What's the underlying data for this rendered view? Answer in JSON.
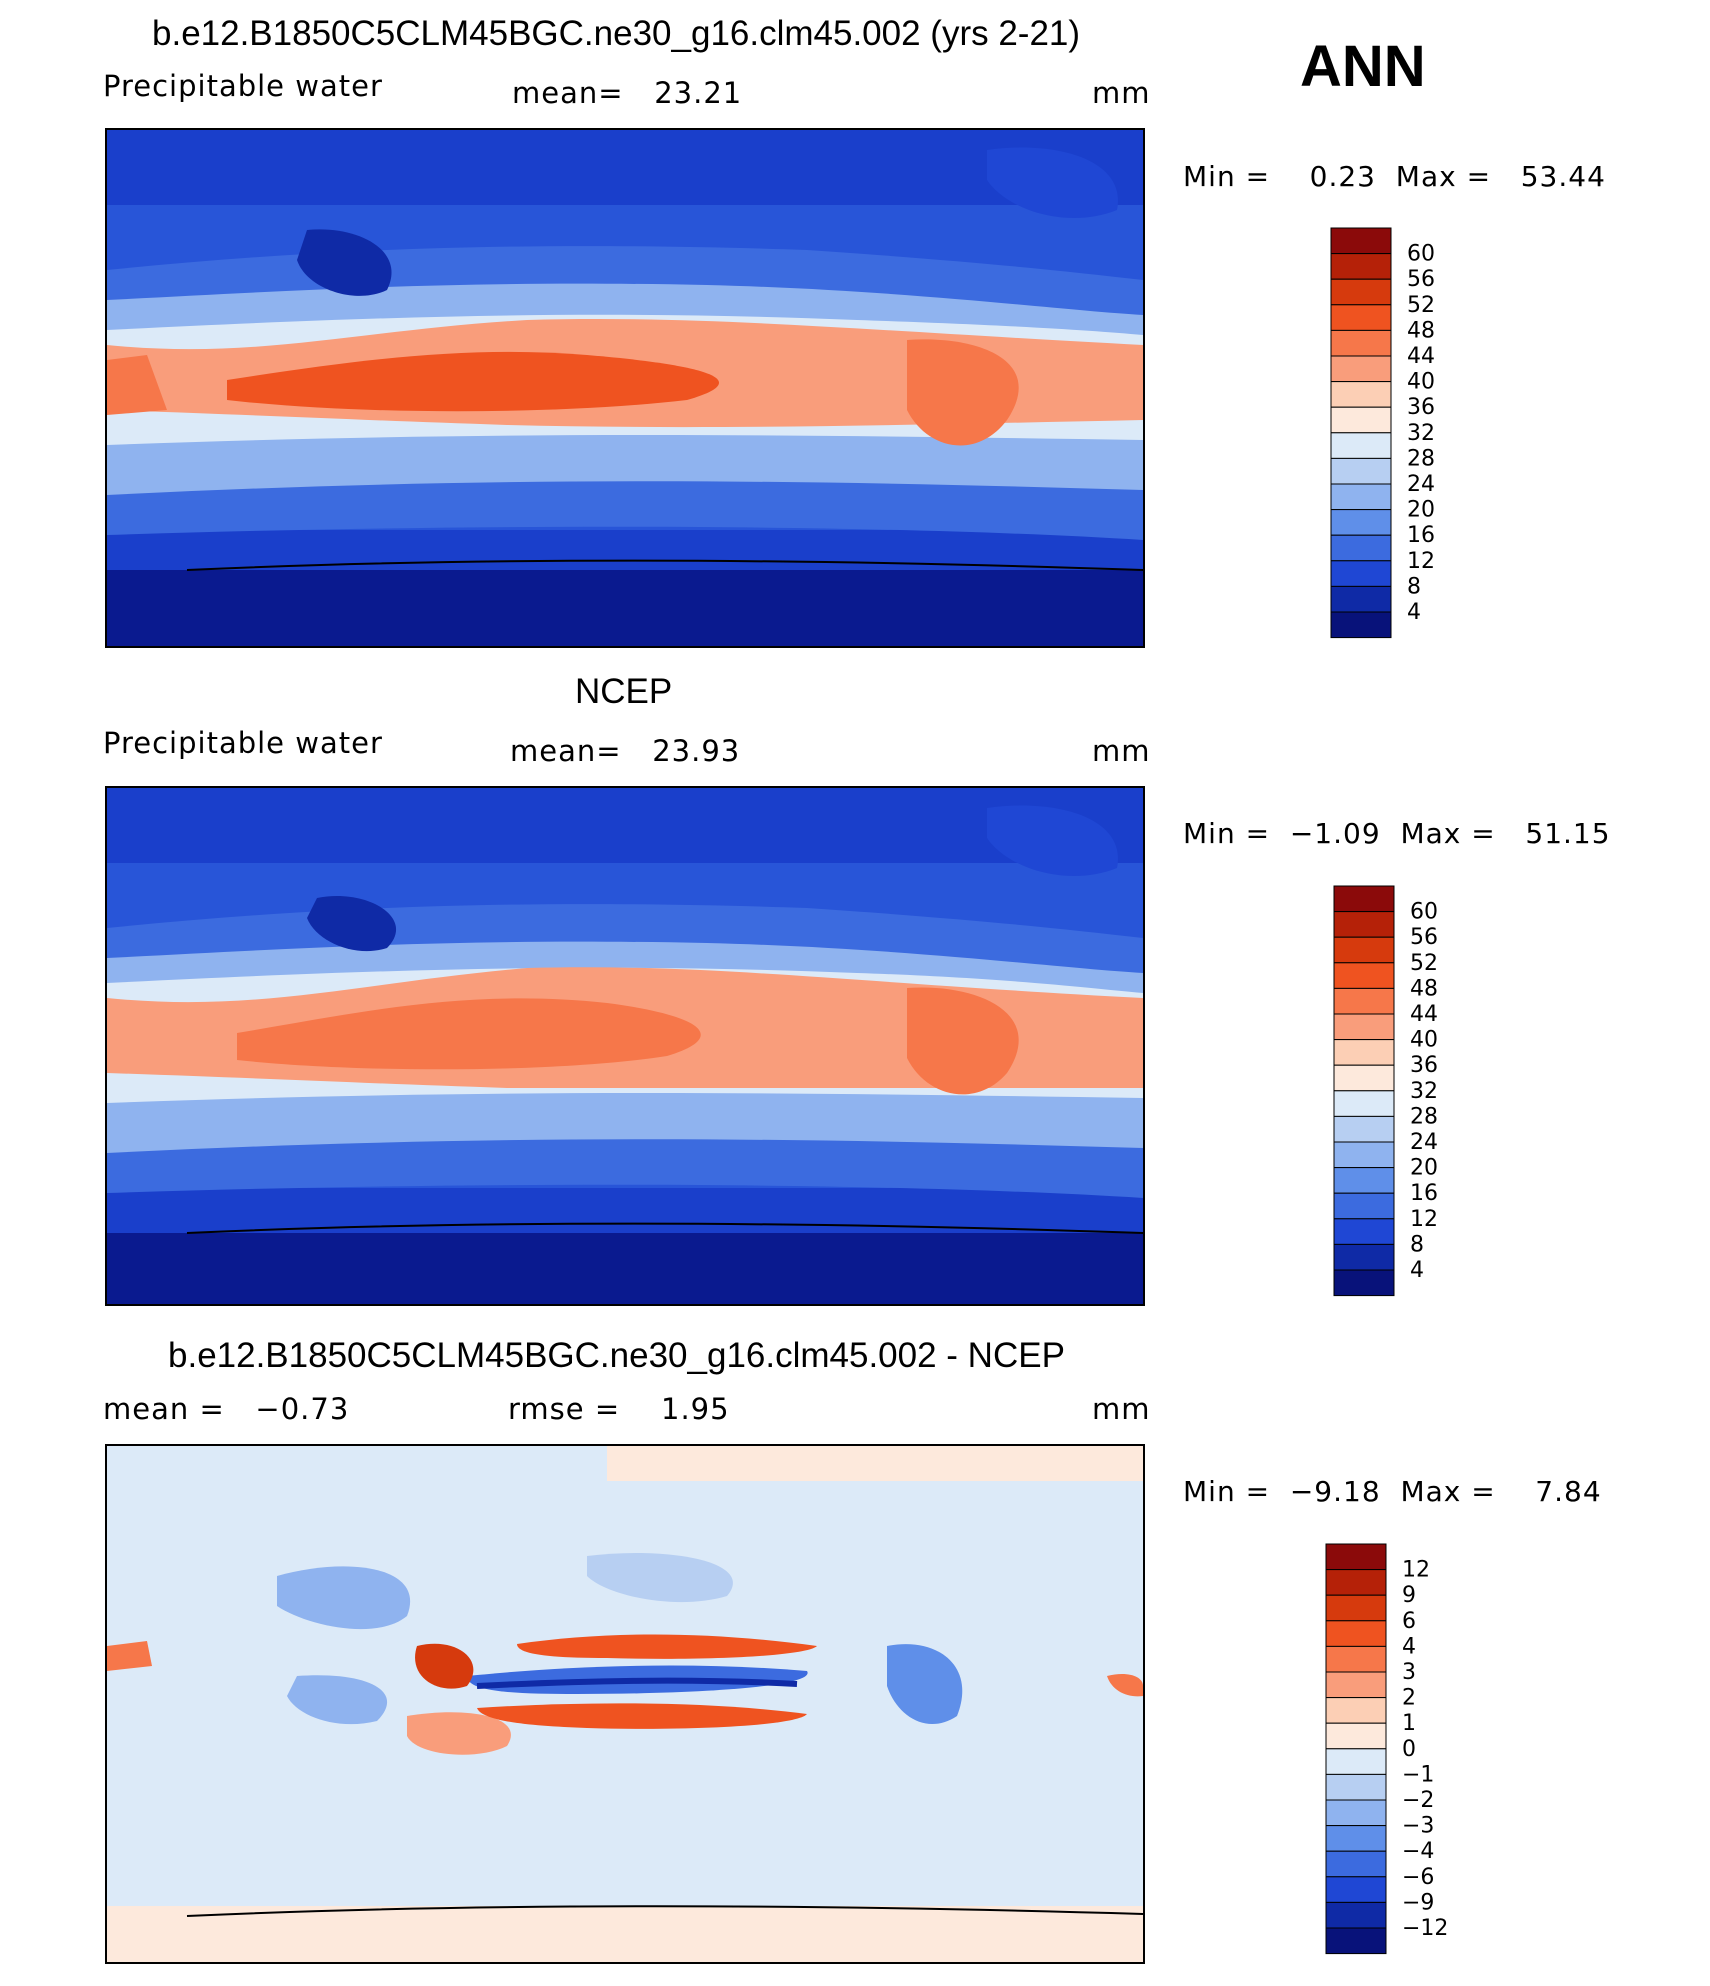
{
  "season": "ANN",
  "panels": [
    {
      "id": "model",
      "title": "b.e12.B1850C5CLM45BGC.ne30_g16.clm45.002 (yrs 2-21)",
      "left_label": "Precipitable water",
      "mid_label": "mean=   23.21",
      "units": "mm",
      "min_max": "Min =    0.23  Max =   53.44",
      "colorbar_labels": [
        "60",
        "56",
        "52",
        "48",
        "44",
        "40",
        "36",
        "32",
        "28",
        "24",
        "20",
        "16",
        "12",
        "8",
        "4"
      ],
      "colorbar_colors": [
        "#8b0a0a",
        "#b52108",
        "#d63a0d",
        "#ef5320",
        "#f6774a",
        "#f99d7b",
        "#fccfb5",
        "#fde9dc",
        "#dceaf8",
        "#b7cff2",
        "#8fb3ef",
        "#5f8fe9",
        "#3c6bdf",
        "#1f47d4",
        "#0f2aa6",
        "#08127a"
      ]
    },
    {
      "id": "obs",
      "title": "NCEP",
      "left_label": "Precipitable water",
      "mid_label": "mean=   23.93",
      "units": "mm",
      "min_max": "Min =  −1.09  Max =   51.15",
      "colorbar_labels": [
        "60",
        "56",
        "52",
        "48",
        "44",
        "40",
        "36",
        "32",
        "28",
        "24",
        "20",
        "16",
        "12",
        "8",
        "4"
      ],
      "colorbar_colors": [
        "#8b0a0a",
        "#b52108",
        "#d63a0d",
        "#ef5320",
        "#f6774a",
        "#f99d7b",
        "#fccfb5",
        "#fde9dc",
        "#dceaf8",
        "#b7cff2",
        "#8fb3ef",
        "#5f8fe9",
        "#3c6bdf",
        "#1f47d4",
        "#0f2aa6",
        "#08127a"
      ]
    },
    {
      "id": "diff",
      "title": "b.e12.B1850C5CLM45BGC.ne30_g16.clm45.002 - NCEP",
      "left_label": "mean =   −0.73",
      "mid_label": "rmse =    1.95",
      "units": "mm",
      "min_max": "Min =  −9.18  Max =    7.84",
      "colorbar_labels": [
        "12",
        "9",
        "6",
        "4",
        "3",
        "2",
        "1",
        "0",
        "−1",
        "−2",
        "−3",
        "−4",
        "−6",
        "−9",
        "−12"
      ],
      "colorbar_colors": [
        "#8b0a0a",
        "#b52108",
        "#d63a0d",
        "#ef5320",
        "#f6774a",
        "#f99d7b",
        "#fccfb5",
        "#fde9dc",
        "#dceaf8",
        "#b7cff2",
        "#8fb3ef",
        "#5f8fe9",
        "#3c6bdf",
        "#1f47d4",
        "#0f2aa6",
        "#08127a"
      ]
    }
  ]
}
